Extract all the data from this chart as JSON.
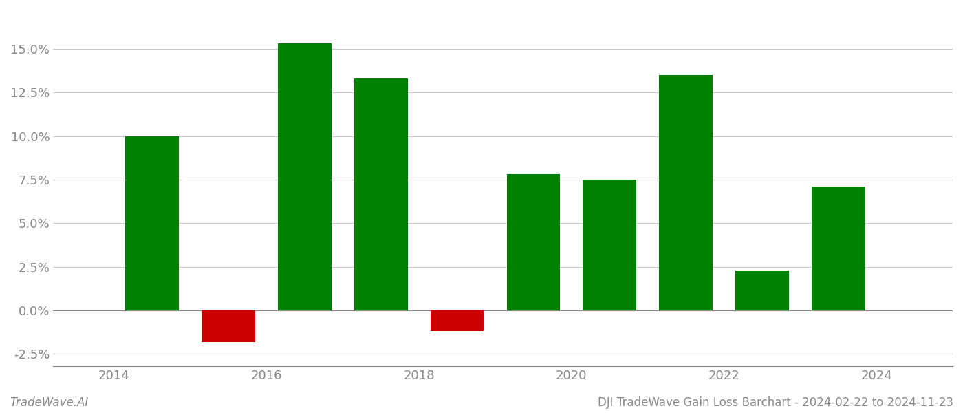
{
  "bar_centers": [
    2014.5,
    2015.5,
    2016.5,
    2017.5,
    2018.5,
    2019.5,
    2020.5,
    2021.5,
    2022.5,
    2023.5
  ],
  "values": [
    0.1,
    -0.018,
    0.153,
    0.133,
    -0.012,
    0.078,
    0.075,
    0.135,
    0.023,
    0.071
  ],
  "colors": [
    "#008000",
    "#cc0000",
    "#008000",
    "#008000",
    "#cc0000",
    "#008000",
    "#008000",
    "#008000",
    "#008000",
    "#008000"
  ],
  "ylim": [
    -0.032,
    0.172
  ],
  "yticks": [
    -0.025,
    0.0,
    0.025,
    0.05,
    0.075,
    0.1,
    0.125,
    0.15
  ],
  "xticks": [
    2014,
    2016,
    2018,
    2020,
    2022,
    2024
  ],
  "xlim": [
    2013.2,
    2025.0
  ],
  "tick_fontsize": 13,
  "title": "DJI TradeWave Gain Loss Barchart - 2024-02-22 to 2024-11-23",
  "watermark": "TradeWave.AI",
  "bar_width": 0.7,
  "background_color": "#ffffff",
  "grid_color": "#cccccc",
  "tick_color": "#888888",
  "spine_color": "#888888",
  "title_fontsize": 12,
  "watermark_fontsize": 12
}
